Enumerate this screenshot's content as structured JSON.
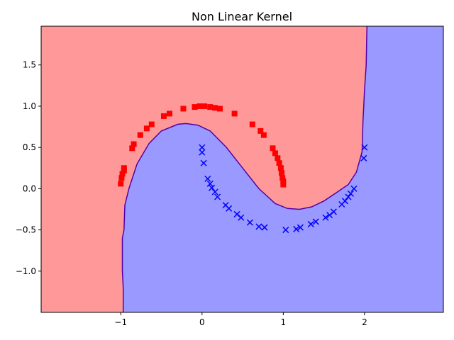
{
  "chart_data": {
    "type": "scatter",
    "title": "Non Linear Kernel",
    "xlabel": "",
    "ylabel": "",
    "xlim": [
      -1.98,
      2.97
    ],
    "ylim": [
      -1.5,
      1.97
    ],
    "xticks": [
      -1,
      0,
      1,
      2
    ],
    "yticks": [
      -1.0,
      -0.5,
      0.0,
      0.5,
      1.0,
      1.5
    ],
    "ytick_labels": [
      "−1.0",
      "−0.5",
      "0.0",
      "0.5",
      "1.0",
      "1.5"
    ],
    "xtick_labels": [
      "−1",
      "0",
      "1",
      "2"
    ],
    "grid": false,
    "colors": {
      "region_class0": "#ff9999",
      "region_class1": "#9999ff",
      "boundary": "#5500aa",
      "class0_marker": "#ff0000",
      "class1_marker": "#0000ff"
    },
    "series": [
      {
        "marker": "square",
        "color": "#ff0000",
        "points": [
          [
            -1.0,
            0.06
          ],
          [
            -0.99,
            0.13
          ],
          [
            -0.98,
            0.18
          ],
          [
            -0.96,
            0.22
          ],
          [
            -0.96,
            0.25
          ],
          [
            -0.86,
            0.49
          ],
          [
            -0.84,
            0.54
          ],
          [
            -0.76,
            0.65
          ],
          [
            -0.68,
            0.73
          ],
          [
            -0.62,
            0.78
          ],
          [
            -0.47,
            0.88
          ],
          [
            -0.4,
            0.91
          ],
          [
            -0.23,
            0.97
          ],
          [
            -0.09,
            0.99
          ],
          [
            -0.03,
            1.0
          ],
          [
            0.03,
            1.0
          ],
          [
            0.1,
            0.99
          ],
          [
            0.16,
            0.98
          ],
          [
            0.22,
            0.97
          ],
          [
            0.4,
            0.91
          ],
          [
            0.62,
            0.78
          ],
          [
            0.72,
            0.7
          ],
          [
            0.76,
            0.65
          ],
          [
            0.87,
            0.49
          ],
          [
            0.9,
            0.43
          ],
          [
            0.93,
            0.37
          ],
          [
            0.95,
            0.31
          ],
          [
            0.97,
            0.25
          ],
          [
            0.98,
            0.19
          ],
          [
            0.99,
            0.13
          ],
          [
            1.0,
            0.09
          ],
          [
            1.0,
            0.05
          ]
        ]
      },
      {
        "marker": "x",
        "color": "#0000ff",
        "points": [
          [
            0.0,
            0.5
          ],
          [
            0.0,
            0.44
          ],
          [
            0.02,
            0.31
          ],
          [
            0.07,
            0.12
          ],
          [
            0.1,
            0.06
          ],
          [
            0.12,
            0.01
          ],
          [
            0.16,
            -0.04
          ],
          [
            0.19,
            -0.1
          ],
          [
            0.29,
            -0.2
          ],
          [
            0.33,
            -0.24
          ],
          [
            0.43,
            -0.31
          ],
          [
            0.48,
            -0.35
          ],
          [
            0.59,
            -0.41
          ],
          [
            0.7,
            -0.46
          ],
          [
            0.77,
            -0.47
          ],
          [
            1.03,
            -0.5
          ],
          [
            1.16,
            -0.49
          ],
          [
            1.21,
            -0.47
          ],
          [
            1.34,
            -0.43
          ],
          [
            1.4,
            -0.4
          ],
          [
            1.52,
            -0.35
          ],
          [
            1.57,
            -0.32
          ],
          [
            1.62,
            -0.28
          ],
          [
            1.72,
            -0.19
          ],
          [
            1.76,
            -0.15
          ],
          [
            1.8,
            -0.1
          ],
          [
            1.83,
            -0.06
          ],
          [
            1.87,
            0.0
          ],
          [
            1.99,
            0.37
          ],
          [
            2.0,
            0.5
          ]
        ]
      }
    ]
  }
}
